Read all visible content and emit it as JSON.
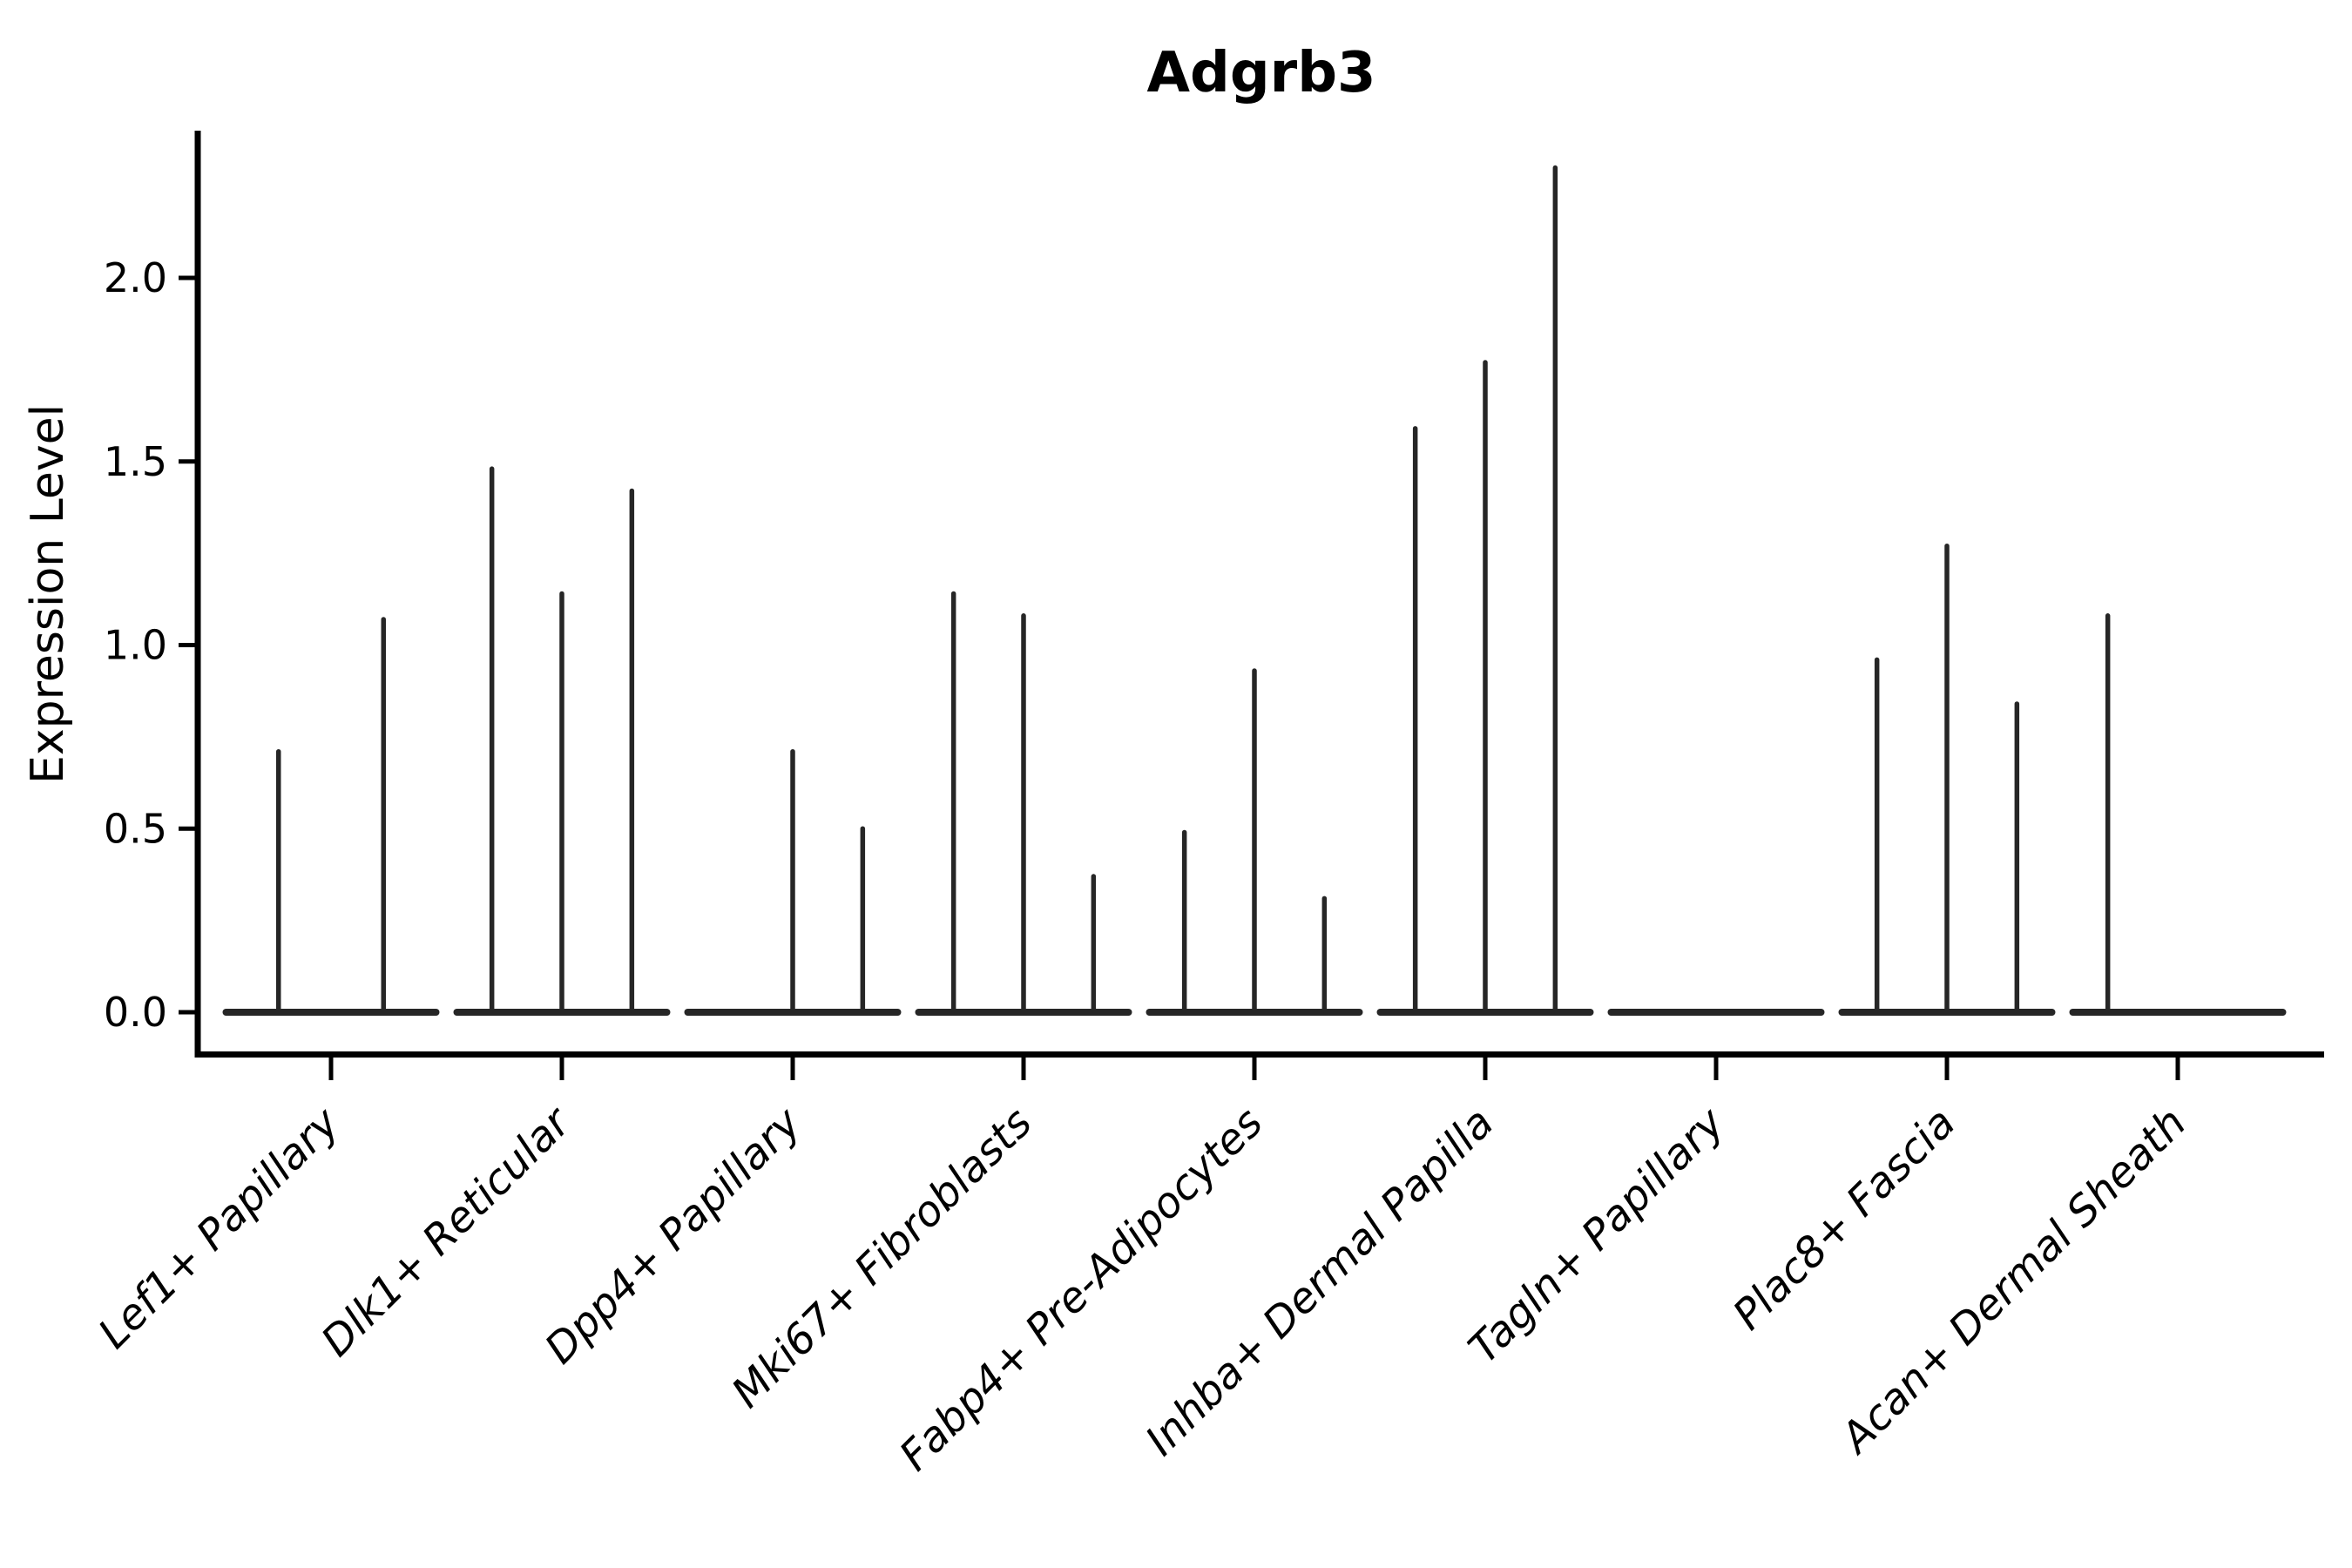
{
  "figure": {
    "title": "Adgrb3",
    "ylabel": "Expression Level"
  },
  "style": {
    "background": "#ffffff",
    "axis_color": "#000000",
    "violin_line_color": "#262626"
  },
  "chart_data": {
    "type": "violin",
    "title": "Adgrb3",
    "xlabel": "",
    "ylabel": "Expression Level",
    "ylim": [
      0,
      2.4
    ],
    "yticks": [
      2.0,
      1.5,
      1.0,
      0.5,
      0.0
    ],
    "ytick_labels": [
      "2.0",
      "1.5",
      "1.0",
      "0.5",
      "0.0"
    ],
    "grid": false,
    "legend": "none",
    "description": "Collapsed violin plot: each category shows a flat baseline at expression 0 with thin vertical density spikes; violins are split into equal sub-slots per category.",
    "categories": [
      {
        "label": "Lef1+ Papillary",
        "violin_slots": 2,
        "spike_values": [
          0.71,
          1.07
        ]
      },
      {
        "label": "Dlk1+ Reticular",
        "violin_slots": 3,
        "spike_values": [
          1.48,
          1.14,
          1.42
        ]
      },
      {
        "label": "Dpp4+ Papillary",
        "violin_slots": 3,
        "spike_values": [
          null,
          0.71,
          0.5
        ]
      },
      {
        "label": "Mki67+ Fibroblasts",
        "violin_slots": 3,
        "spike_values": [
          1.14,
          1.08,
          0.37
        ]
      },
      {
        "label": "Fabp4+ Pre-Adipocytes",
        "violin_slots": 3,
        "spike_values": [
          0.49,
          0.93,
          0.31
        ]
      },
      {
        "label": "Inhba+ Dermal Papilla",
        "violin_slots": 3,
        "spike_values": [
          1.59,
          1.77,
          2.3
        ]
      },
      {
        "label": "Tagln+ Papillary",
        "violin_slots": 3,
        "spike_values": [
          null,
          null,
          null
        ]
      },
      {
        "label": "Plac8+ Fascia",
        "violin_slots": 3,
        "spike_values": [
          0.96,
          1.27,
          0.84
        ]
      },
      {
        "label": "Acan+ Dermal Sheath",
        "violin_slots": 3,
        "spike_values": [
          1.08,
          null,
          null
        ]
      }
    ]
  }
}
